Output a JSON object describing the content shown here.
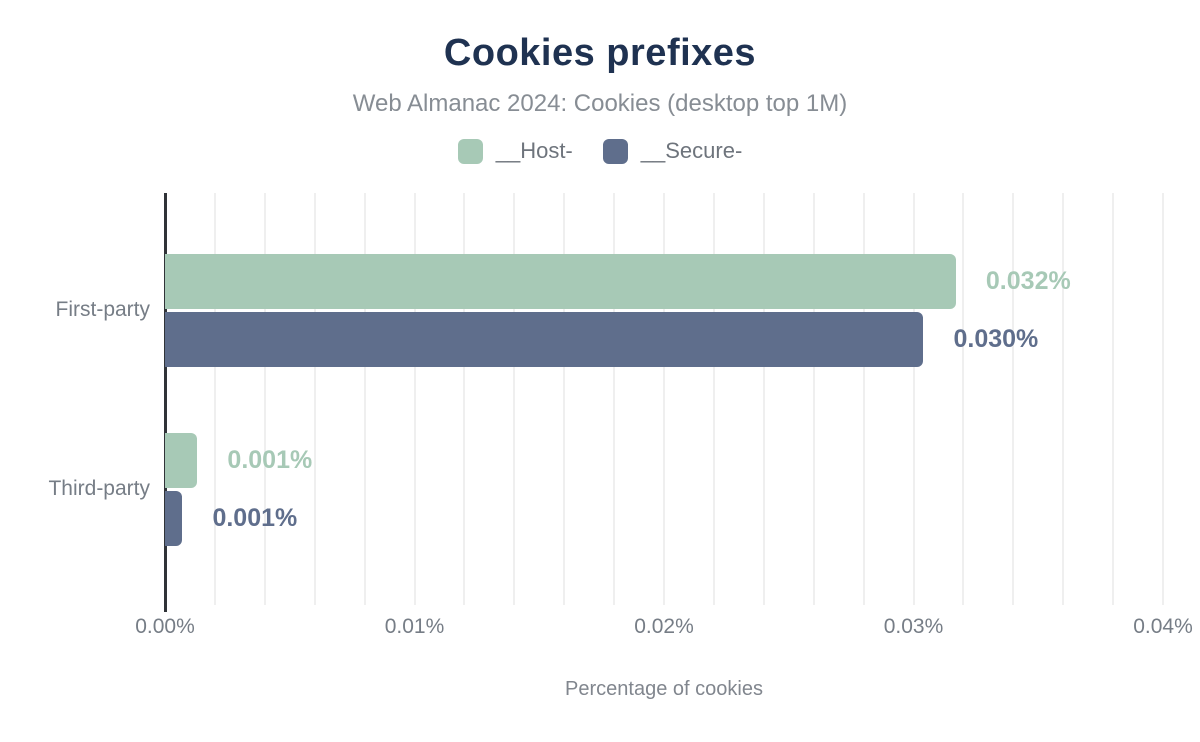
{
  "header": {
    "title": "Cookies prefixes",
    "subtitle": "Web Almanac 2024: Cookies (desktop top 1M)"
  },
  "colors": {
    "host_green": "#a7c9b6",
    "secure_slate": "#5f6e8c",
    "title_navy": "#1f3251",
    "text_gray": "#767d86",
    "axis_line": "#303338",
    "gridline": "#efefef",
    "background": "#ffffff"
  },
  "chart_data": {
    "type": "bar",
    "orientation": "horizontal",
    "title": "Cookies prefixes",
    "subtitle": "Web Almanac 2024: Cookies (desktop top 1M)",
    "categories": [
      "First-party",
      "Third-party"
    ],
    "series": [
      {
        "name": "__Host-",
        "color": "#a7c9b6",
        "values": [
          0.032,
          0.001
        ],
        "labels": [
          "0.032%",
          "0.001%"
        ],
        "values_drawn": [
          0.0317,
          0.0013
        ]
      },
      {
        "name": "__Secure-",
        "color": "#5f6e8c",
        "values": [
          0.03,
          0.001
        ],
        "labels": [
          "0.030%",
          "0.001%"
        ],
        "values_drawn": [
          0.0304,
          0.0007
        ]
      }
    ],
    "xlabel": "Percentage of cookies",
    "ylabel": "",
    "xlim": [
      0,
      0.04
    ],
    "x_ticks": [
      "0.00%",
      "0.01%",
      "0.02%",
      "0.03%",
      "0.04%"
    ],
    "x_tick_values": [
      0,
      0.01,
      0.02,
      0.03,
      0.04
    ],
    "minor_grid_step": 0.002,
    "grid": "vertical-minor",
    "legend_position": "top-center",
    "value_labels": "outside-end"
  }
}
